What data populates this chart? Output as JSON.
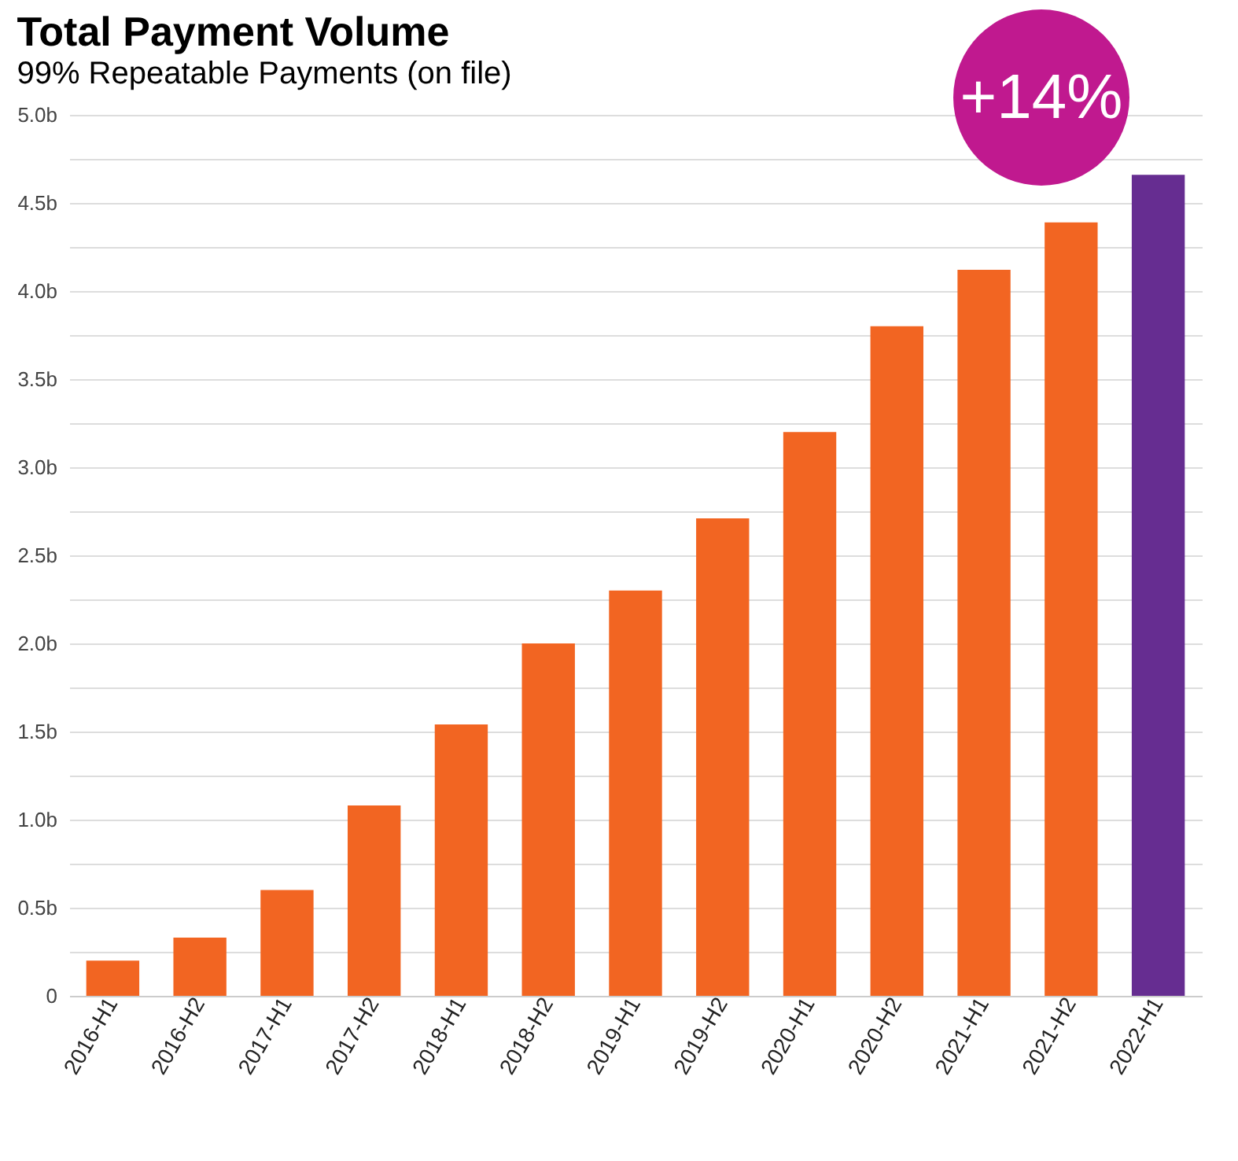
{
  "chart_data": {
    "type": "bar",
    "title": "Total Payment Volume",
    "subtitle": "99% Repeatable Payments (on file)",
    "categories": [
      "2016-H1",
      "2016-H2",
      "2017-H1",
      "2017-H2",
      "2018-H1",
      "2018-H2",
      "2019-H1",
      "2019-H2",
      "2020-H1",
      "2020-H2",
      "2021-H1",
      "2021-H2",
      "2022-H1"
    ],
    "values": [
      0.2,
      0.33,
      0.6,
      1.08,
      1.54,
      2.0,
      2.3,
      2.71,
      3.2,
      3.8,
      4.12,
      4.39,
      4.66
    ],
    "colors": [
      "#f26522",
      "#f26522",
      "#f26522",
      "#f26522",
      "#f26522",
      "#f26522",
      "#f26522",
      "#f26522",
      "#f26522",
      "#f26522",
      "#f26522",
      "#f26522",
      "#662d91"
    ],
    "ylim": [
      0,
      5
    ],
    "yticks": [
      0,
      {
        "value": 0.25,
        "label": null
      },
      {
        "value": 0.5,
        "label": "0.5b"
      },
      {
        "value": 0.75,
        "label": null
      },
      {
        "value": 1,
        "label": "1.0b"
      },
      {
        "value": 1.25,
        "label": null
      },
      {
        "value": 1.5,
        "label": "1.5b"
      },
      {
        "value": 1.75,
        "label": null
      },
      {
        "value": 2,
        "label": "2.0b"
      },
      {
        "value": 2.25,
        "label": null
      },
      {
        "value": 2.5,
        "label": "2.5b"
      },
      {
        "value": 2.75,
        "label": null
      },
      {
        "value": 3,
        "label": "3.0b"
      },
      {
        "value": 3.25,
        "label": null
      },
      {
        "value": 3.5,
        "label": "3.5b"
      },
      {
        "value": 3.75,
        "label": null
      },
      {
        "value": 4,
        "label": "4.0b"
      },
      {
        "value": 4.25,
        "label": null
      },
      {
        "value": 4.5,
        "label": "4.5b"
      },
      {
        "value": 4.75,
        "label": null
      },
      {
        "value": 5,
        "label": "5.0b"
      }
    ],
    "grid": "y",
    "annotations": [
      "+14%"
    ]
  }
}
